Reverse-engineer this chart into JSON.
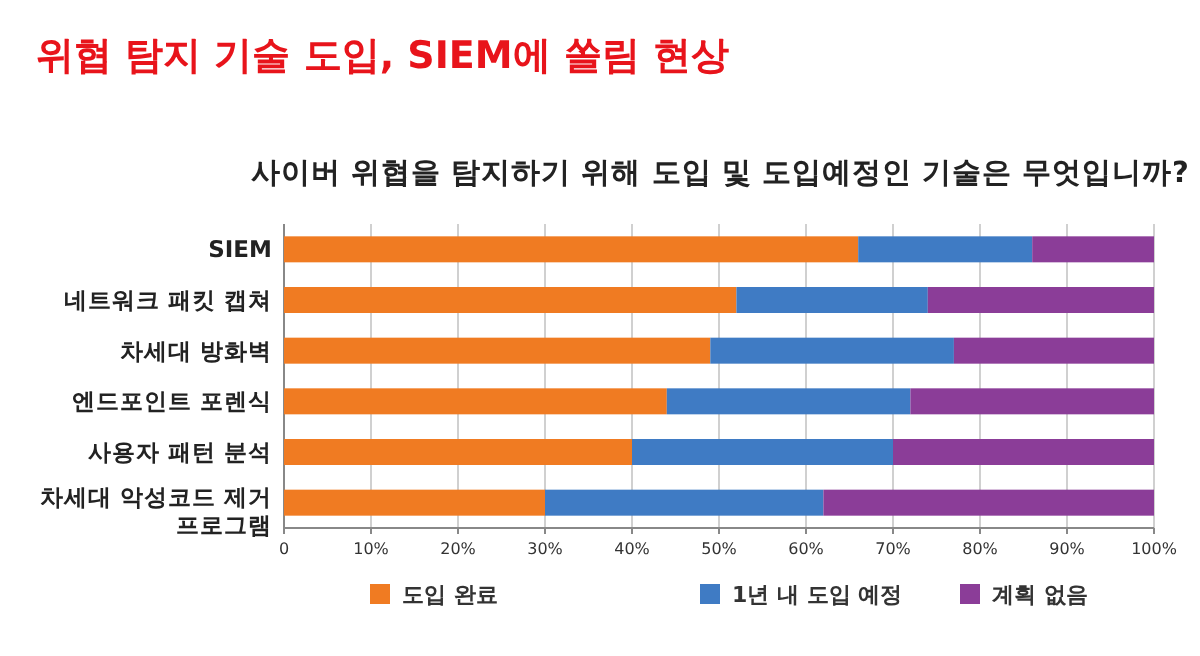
{
  "chart_data": {
    "type": "bar",
    "orientation": "horizontal",
    "stacked": true,
    "title": "위협 탐지 기술  도입, SIEM에 쏠림 현상",
    "subtitle": "사이버 위협을 탐지하기 위해 도입 및 도입예정인 기술은 무엇입니까?",
    "categories": [
      "SIEM",
      "네트워크 패킷 캡쳐",
      "차세대 방화벽",
      "엔드포인트 포렌식",
      "사용자 패턴 분석",
      "차세대 악성코드 제거 프로그램"
    ],
    "series": [
      {
        "name": "도입 완료",
        "color": "#f07b22",
        "values": [
          66,
          52,
          49,
          44,
          40,
          30
        ]
      },
      {
        "name": "1년 내 도입 예정",
        "color": "#3f7bc4",
        "values": [
          20,
          22,
          28,
          28,
          30,
          32
        ]
      },
      {
        "name": "계획 없음",
        "color": "#8b3d98",
        "values": [
          14,
          26,
          23,
          28,
          30,
          38
        ]
      }
    ],
    "xlim": [
      0,
      100
    ],
    "xticks": [
      0,
      {
        "value": 10,
        "label": "10%"
      },
      {
        "value": 20,
        "label": "20%"
      },
      {
        "value": 30,
        "label": "30%"
      },
      {
        "value": 40,
        "label": "40%"
      },
      {
        "value": 50,
        "label": "50%"
      },
      {
        "value": 60,
        "label": "60%"
      },
      {
        "value": 70,
        "label": "70%"
      },
      {
        "value": 80,
        "label": "80%"
      },
      {
        "value": 90,
        "label": "90%"
      },
      {
        "value": 100,
        "label": "100%"
      }
    ],
    "grid": "x",
    "legend": "bottom"
  }
}
